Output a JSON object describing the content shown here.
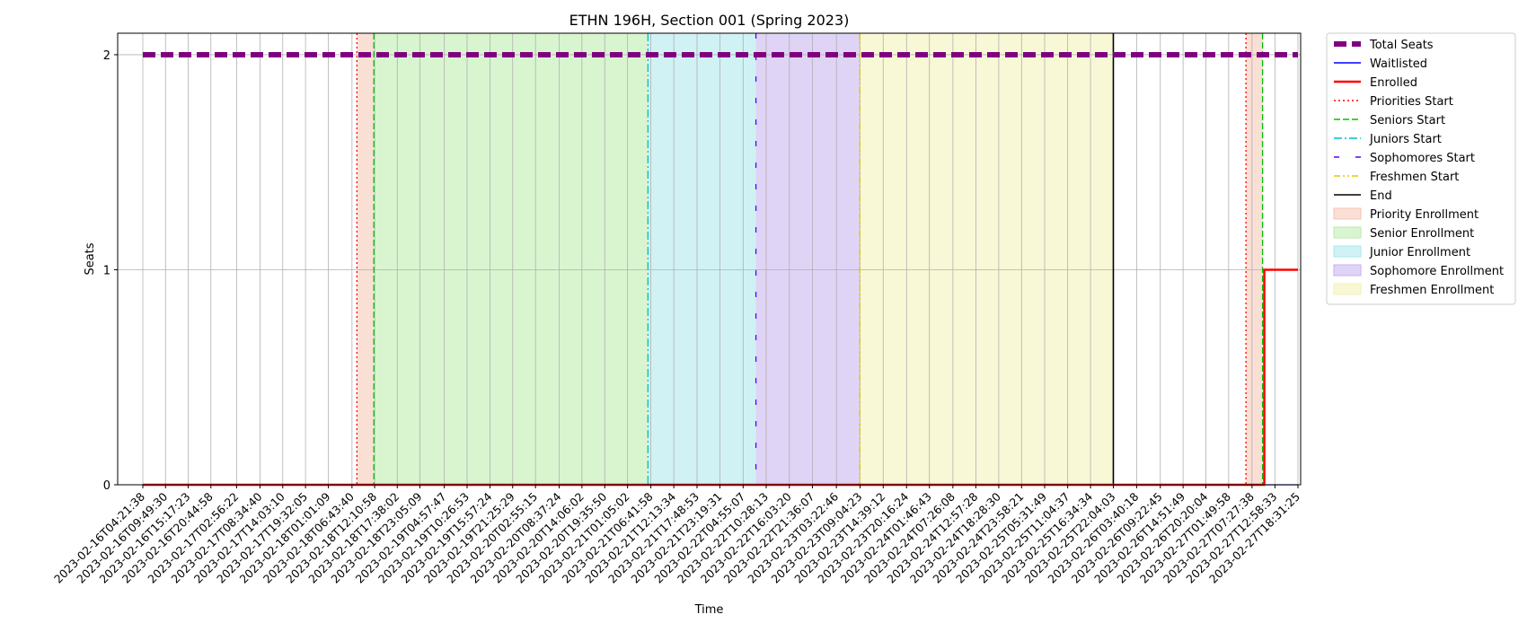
{
  "chart_data": {
    "type": "line",
    "title": "ETHN 196H, Section 001 (Spring 2023)",
    "xlabel": "Time",
    "ylabel": "Seats",
    "ylim": [
      0,
      2.1
    ],
    "yticks": [
      "0",
      "1",
      "2"
    ],
    "x_ticks": [
      "2023-02-16T04:21:38",
      "2023-02-16T09:49:30",
      "2023-02-16T15:17:23",
      "2023-02-16T20:44:58",
      "2023-02-17T02:56:22",
      "2023-02-17T08:34:40",
      "2023-02-17T14:03:10",
      "2023-02-17T19:32:05",
      "2023-02-18T01:01:09",
      "2023-02-18T06:43:40",
      "2023-02-18T12:10:58",
      "2023-02-18T17:38:02",
      "2023-02-18T23:05:09",
      "2023-02-19T04:57:47",
      "2023-02-19T10:26:53",
      "2023-02-19T15:57:24",
      "2023-02-19T21:25:29",
      "2023-02-20T02:55:15",
      "2023-02-20T08:37:24",
      "2023-02-20T14:06:02",
      "2023-02-20T19:35:50",
      "2023-02-21T01:05:02",
      "2023-02-21T06:41:58",
      "2023-02-21T12:13:34",
      "2023-02-21T17:48:53",
      "2023-02-21T23:19:31",
      "2023-02-22T04:55:07",
      "2023-02-22T10:28:13",
      "2023-02-22T16:03:20",
      "2023-02-22T21:36:07",
      "2023-02-23T03:22:46",
      "2023-02-23T09:04:23",
      "2023-02-23T14:39:12",
      "2023-02-23T20:16:24",
      "2023-02-24T01:46:43",
      "2023-02-24T07:26:08",
      "2023-02-24T12:57:28",
      "2023-02-24T18:28:30",
      "2023-02-24T23:58:21",
      "2023-02-25T05:31:49",
      "2023-02-25T11:04:37",
      "2023-02-25T16:34:34",
      "2023-02-25T22:04:03",
      "2023-02-26T03:40:18",
      "2023-02-26T09:22:45",
      "2023-02-26T14:51:49",
      "2023-02-26T20:20:04",
      "2023-02-27T01:49:58",
      "2023-02-27T07:27:38",
      "2023-02-27T12:58:33",
      "2023-02-27T18:31:25"
    ],
    "series": [
      {
        "name": "Total Seats",
        "color": "#800080",
        "style": "dashed-thick",
        "x": [
          "2023-02-16T04:21:38",
          "2023-02-27T18:31:25"
        ],
        "values": [
          2,
          2
        ]
      },
      {
        "name": "Waitlisted",
        "color": "#0000ff",
        "style": "solid",
        "x": [
          "2023-02-16T04:21:38",
          "2023-02-27T18:31:25"
        ],
        "values": [
          0,
          0
        ]
      },
      {
        "name": "Enrolled",
        "color": "#ff0000",
        "style": "solid-thick",
        "x": [
          "2023-02-16T04:21:38",
          "2023-02-27T10:25",
          "2023-02-27T10:25",
          "2023-02-27T18:31:25"
        ],
        "values": [
          0,
          0,
          1,
          1
        ]
      }
    ],
    "vlines": [
      {
        "name": "Priorities Start",
        "color": "#ff0000",
        "style": "dotted",
        "x": "2023-02-18T07:55"
      },
      {
        "name": "Seniors Start",
        "color": "#00c000",
        "style": "dashed",
        "x": "2023-02-18T12:00"
      },
      {
        "name": "Juniors Start",
        "color": "#00bfbf",
        "style": "dashdot",
        "x": "2023-02-21T06:00"
      },
      {
        "name": "Sophomores Start",
        "color": "#5500ff",
        "style": "loosedash",
        "x": "2023-02-22T08:00"
      },
      {
        "name": "Freshmen Start",
        "color": "#e6c800",
        "style": "dashdotdot",
        "x": "2023-02-23T09:00"
      },
      {
        "name": "End",
        "color": "#000000",
        "style": "solid",
        "x": "2023-02-25T22:04:03"
      },
      {
        "name": "Priorities Start",
        "color": "#ff0000",
        "style": "dotted",
        "x": "2023-02-27T06:00",
        "legend": false
      },
      {
        "name": "Seniors Start",
        "color": "#00c000",
        "style": "dashed",
        "x": "2023-02-27T10:00",
        "legend": false
      }
    ],
    "spans": [
      {
        "name": "Priority Enrollment",
        "color": "#f4c4b0",
        "from": "2023-02-18T07:55",
        "to": "2023-02-18T12:00"
      },
      {
        "name": "Senior Enrollment",
        "color": "#b8ecaa",
        "from": "2023-02-18T12:00",
        "to": "2023-02-21T06:00"
      },
      {
        "name": "Junior Enrollment",
        "color": "#a9e8ec",
        "from": "2023-02-21T06:00",
        "to": "2023-02-22T08:00"
      },
      {
        "name": "Sophomore Enrollment",
        "color": "#c4b0ec",
        "from": "2023-02-22T08:00",
        "to": "2023-02-23T09:00"
      },
      {
        "name": "Freshmen Enrollment",
        "color": "#f2f2b4",
        "from": "2023-02-23T09:00",
        "to": "2023-02-25T22:04:03"
      },
      {
        "name": "Priority Enrollment",
        "color": "#f4c4b0",
        "from": "2023-02-27T06:00",
        "to": "2023-02-27T10:00",
        "legend": false
      }
    ],
    "legend": {
      "placement": "outside-top-right",
      "entries": [
        "Total Seats",
        "Waitlisted",
        "Enrolled",
        "Priorities Start",
        "Seniors Start",
        "Juniors Start",
        "Sophomores Start",
        "Freshmen Start",
        "End",
        "Priority Enrollment",
        "Senior Enrollment",
        "Junior Enrollment",
        "Sophomore Enrollment",
        "Freshmen Enrollment"
      ]
    },
    "grid": true
  }
}
